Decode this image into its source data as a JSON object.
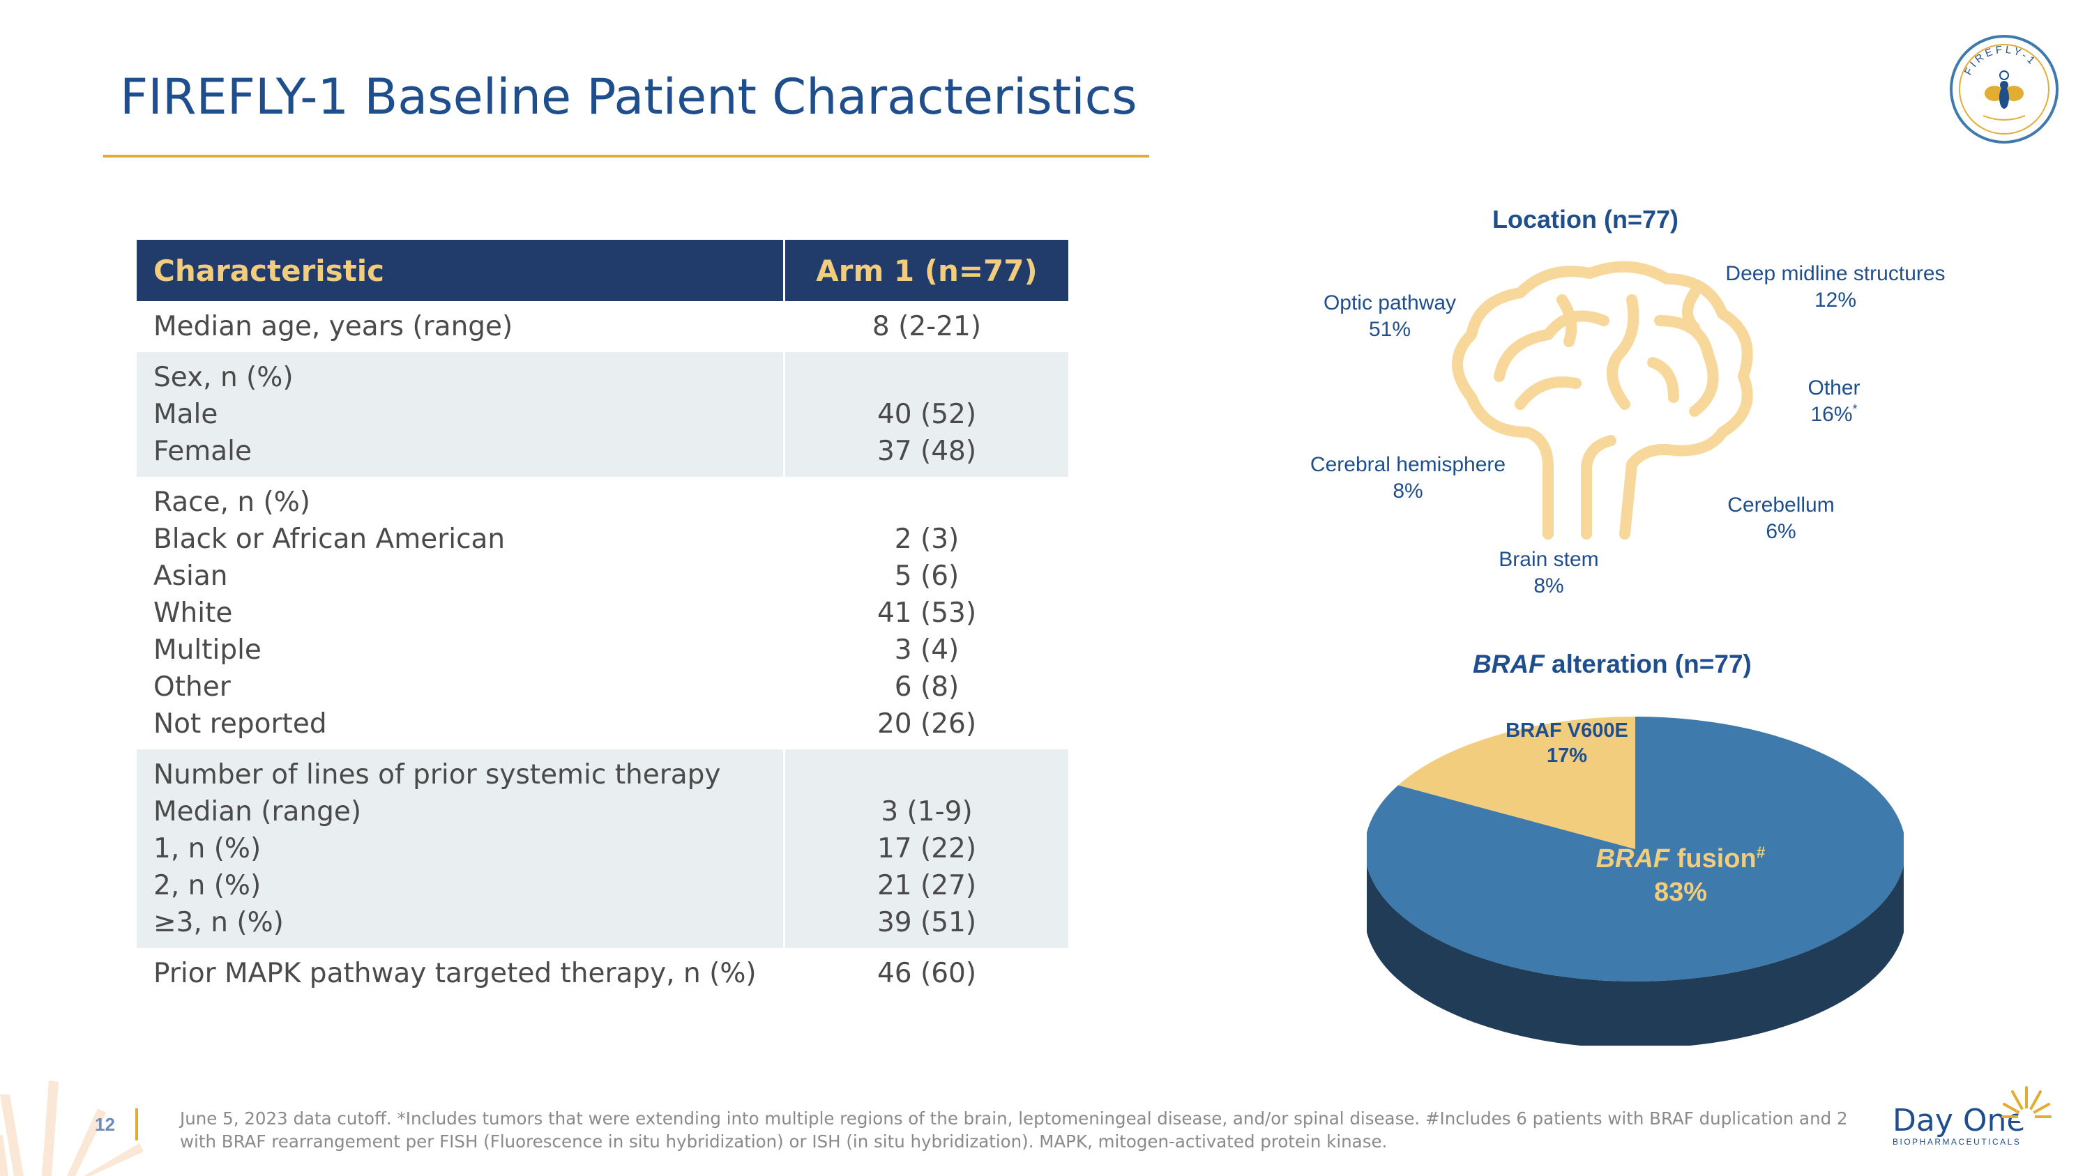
{
  "header": {
    "title": "FIREFLY-1 Baseline Patient Characteristics",
    "seal_text": "FIREFLY-1"
  },
  "table": {
    "col_characteristic": "Characteristic",
    "col_arm": "Arm 1 (n=77)",
    "rows": [
      {
        "labels": [
          "Median age, years (range)"
        ],
        "values": [
          "8 (2-21)"
        ]
      },
      {
        "labels": [
          "Sex, n (%)",
          "Male",
          "Female"
        ],
        "values": [
          "",
          "40 (52)",
          "37 (48)"
        ]
      },
      {
        "labels": [
          "Race, n (%)",
          "Black or African American",
          "Asian",
          "White",
          "Multiple",
          "Other",
          "Not reported"
        ],
        "values": [
          "",
          "2 (3)",
          "5 (6)",
          "41 (53)",
          "3 (4)",
          "6 (8)",
          "20 (26)"
        ]
      },
      {
        "labels": [
          "Number of lines of prior systemic therapy",
          "Median (range)",
          "1, n (%)",
          "2, n (%)",
          "≥3, n (%)"
        ],
        "values": [
          "",
          "3 (1-9)",
          "17 (22)",
          "21 (27)",
          "39 (51)"
        ]
      },
      {
        "labels": [
          "Prior MAPK pathway targeted therapy, n (%)"
        ],
        "values": [
          "46 (60)"
        ]
      }
    ]
  },
  "location": {
    "title": "Location (n=77)",
    "optic": {
      "name": "Optic pathway",
      "pct": "51%"
    },
    "deep": {
      "name": "Deep midline structures",
      "pct": "12%"
    },
    "other": {
      "name": "Other",
      "pct": "16%",
      "mark": "*"
    },
    "cerebral": {
      "name": "Cerebral hemisphere",
      "pct": "8%"
    },
    "cerebellum": {
      "name": "Cerebellum",
      "pct": "6%"
    },
    "brainstem": {
      "name": "Brain stem",
      "pct": "8%"
    }
  },
  "braf": {
    "title_italic": "BRAF",
    "title_rest": " alteration (n=77)",
    "v600e_label": "BRAF V600E",
    "v600e_pct": "17%",
    "v600e_value": 17,
    "fusion_italic": "BRAF",
    "fusion_rest": " fusion",
    "fusion_mark": "#",
    "fusion_pct": "83%",
    "fusion_value": 83,
    "colors": {
      "fusion": "#3e7aab",
      "fusion_side": "#213c56",
      "v600e": "#f2cd7e"
    }
  },
  "footer": {
    "page_number": "12",
    "footnote": "June 5, 2023 data cutoff. *Includes tumors that were extending into multiple regions of the brain, leptomeningeal disease, and/or spinal disease. #Includes 6 patients with BRAF duplication and 2 with BRAF rearrangement per FISH (Fluorescence in situ hybridization) or ISH (in situ hybridization). MAPK, mitogen-activated protein kinase.",
    "brand_name": "Day One",
    "brand_sub": "BIOPHARMACEUTICALS"
  },
  "colors": {
    "navy": "#213c6b",
    "blue_text": "#1f4e8c",
    "gold": "#e2ad32",
    "pale_gold": "#f2cd7e",
    "row_shade": "#e9eef1"
  }
}
